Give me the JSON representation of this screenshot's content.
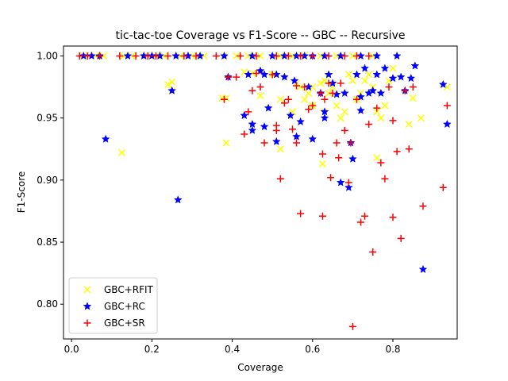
{
  "chart_data": {
    "type": "scatter",
    "title": "tic-tac-toe Coverage vs F1-Score -- GBC -- Recursive",
    "xlabel": "Coverage",
    "ylabel": "F1-Score",
    "xlim": [
      -0.02,
      0.96
    ],
    "ylim": [
      0.772,
      1.008
    ],
    "xticks": [
      0.0,
      0.2,
      0.4,
      0.6,
      0.8
    ],
    "yticks": [
      0.8,
      0.85,
      0.9,
      0.95,
      1.0
    ],
    "xtick_labels": [
      "0.0",
      "0.2",
      "0.4",
      "0.6",
      "0.8"
    ],
    "ytick_labels": [
      "0.80",
      "0.85",
      "0.90",
      "0.95",
      "1.00"
    ],
    "grid": false,
    "legend_position": "lower-left",
    "series": [
      {
        "name": "GBC+RFIT",
        "marker": "x",
        "color": "#ffff00",
        "points": [
          [
            0.03,
            1.0
          ],
          [
            0.06,
            1.0
          ],
          [
            0.08,
            1.0
          ],
          [
            0.13,
            1.0
          ],
          [
            0.15,
            1.0
          ],
          [
            0.18,
            1.0
          ],
          [
            0.21,
            1.0
          ],
          [
            0.23,
            1.0
          ],
          [
            0.27,
            1.0
          ],
          [
            0.3,
            1.0
          ],
          [
            0.33,
            1.0
          ],
          [
            0.38,
            1.0
          ],
          [
            0.41,
            1.0
          ],
          [
            0.44,
            1.0
          ],
          [
            0.47,
            1.0
          ],
          [
            0.52,
            1.0
          ],
          [
            0.55,
            1.0
          ],
          [
            0.58,
            1.0
          ],
          [
            0.62,
            1.0
          ],
          [
            0.66,
            1.0
          ],
          [
            0.7,
            1.0
          ],
          [
            0.75,
            1.0
          ],
          [
            0.125,
            0.922
          ],
          [
            0.24,
            0.977
          ],
          [
            0.25,
            0.979
          ],
          [
            0.25,
            0.972
          ],
          [
            0.375,
            0.966
          ],
          [
            0.385,
            0.966
          ],
          [
            0.385,
            0.93
          ],
          [
            0.43,
            0.987
          ],
          [
            0.45,
            0.986
          ],
          [
            0.47,
            0.968
          ],
          [
            0.5,
            0.985
          ],
          [
            0.52,
            0.965
          ],
          [
            0.52,
            0.925
          ],
          [
            0.55,
            0.955
          ],
          [
            0.56,
            0.978
          ],
          [
            0.57,
            0.975
          ],
          [
            0.58,
            0.965
          ],
          [
            0.59,
            0.97
          ],
          [
            0.6,
            0.975
          ],
          [
            0.62,
            0.978
          ],
          [
            0.63,
            0.98
          ],
          [
            0.64,
            0.97
          ],
          [
            0.65,
            0.975
          ],
          [
            0.66,
            0.96
          ],
          [
            0.67,
            0.95
          ],
          [
            0.68,
            0.955
          ],
          [
            0.69,
            0.985
          ],
          [
            0.7,
            0.98
          ],
          [
            0.71,
            0.965
          ],
          [
            0.72,
            0.97
          ],
          [
            0.73,
            0.98
          ],
          [
            0.74,
            0.985
          ],
          [
            0.75,
            0.975
          ],
          [
            0.76,
            0.955
          ],
          [
            0.76,
            0.918
          ],
          [
            0.77,
            0.95
          ],
          [
            0.78,
            0.96
          ],
          [
            0.79,
            0.98
          ],
          [
            0.8,
            0.99
          ],
          [
            0.84,
            0.945
          ],
          [
            0.85,
            0.966
          ],
          [
            0.87,
            0.95
          ],
          [
            0.935,
            0.975
          ],
          [
            0.625,
            0.913
          ],
          [
            0.6,
            0.96
          ],
          [
            0.63,
            0.955
          ]
        ]
      },
      {
        "name": "GBC+RC",
        "marker": "*",
        "color": "#0000ff",
        "points": [
          [
            0.03,
            1.0
          ],
          [
            0.05,
            1.0
          ],
          [
            0.07,
            1.0
          ],
          [
            0.14,
            1.0
          ],
          [
            0.18,
            1.0
          ],
          [
            0.2,
            1.0
          ],
          [
            0.22,
            1.0
          ],
          [
            0.26,
            1.0
          ],
          [
            0.29,
            1.0
          ],
          [
            0.32,
            1.0
          ],
          [
            0.38,
            1.0
          ],
          [
            0.45,
            1.0
          ],
          [
            0.5,
            1.0
          ],
          [
            0.53,
            1.0
          ],
          [
            0.56,
            1.0
          ],
          [
            0.58,
            1.0
          ],
          [
            0.6,
            1.0
          ],
          [
            0.63,
            1.0
          ],
          [
            0.67,
            1.0
          ],
          [
            0.72,
            1.0
          ],
          [
            0.76,
            1.0
          ],
          [
            0.085,
            0.933
          ],
          [
            0.25,
            0.972
          ],
          [
            0.265,
            0.884
          ],
          [
            0.39,
            0.983
          ],
          [
            0.43,
            0.952
          ],
          [
            0.44,
            0.985
          ],
          [
            0.45,
            0.945
          ],
          [
            0.45,
            0.94
          ],
          [
            0.47,
            0.988
          ],
          [
            0.48,
            0.985
          ],
          [
            0.48,
            0.943
          ],
          [
            0.49,
            0.958
          ],
          [
            0.51,
            0.985
          ],
          [
            0.51,
            0.931
          ],
          [
            0.53,
            0.983
          ],
          [
            0.545,
            0.952
          ],
          [
            0.555,
            0.98
          ],
          [
            0.56,
            0.935
          ],
          [
            0.57,
            0.947
          ],
          [
            0.59,
            0.975
          ],
          [
            0.6,
            0.933
          ],
          [
            0.62,
            0.97
          ],
          [
            0.63,
            0.95
          ],
          [
            0.63,
            0.955
          ],
          [
            0.64,
            0.985
          ],
          [
            0.65,
            0.978
          ],
          [
            0.66,
            0.969
          ],
          [
            0.67,
            0.898
          ],
          [
            0.68,
            0.97
          ],
          [
            0.69,
            0.894
          ],
          [
            0.695,
            0.93
          ],
          [
            0.7,
            0.917
          ],
          [
            0.71,
            0.985
          ],
          [
            0.72,
            0.967
          ],
          [
            0.72,
            0.956
          ],
          [
            0.73,
            0.99
          ],
          [
            0.74,
            0.97
          ],
          [
            0.75,
            0.972
          ],
          [
            0.76,
            0.985
          ],
          [
            0.77,
            0.97
          ],
          [
            0.78,
            0.99
          ],
          [
            0.8,
            0.982
          ],
          [
            0.81,
            1.0
          ],
          [
            0.82,
            0.983
          ],
          [
            0.83,
            0.972
          ],
          [
            0.845,
            0.982
          ],
          [
            0.855,
            0.992
          ],
          [
            0.875,
            0.828
          ],
          [
            0.925,
            0.977
          ],
          [
            0.935,
            0.945
          ]
        ]
      },
      {
        "name": "GBC+SR",
        "marker": "+",
        "color": "#ff0000",
        "points": [
          [
            0.02,
            1.0
          ],
          [
            0.04,
            1.0
          ],
          [
            0.07,
            1.0
          ],
          [
            0.12,
            1.0
          ],
          [
            0.16,
            1.0
          ],
          [
            0.19,
            1.0
          ],
          [
            0.21,
            1.0
          ],
          [
            0.24,
            1.0
          ],
          [
            0.28,
            1.0
          ],
          [
            0.31,
            1.0
          ],
          [
            0.36,
            1.0
          ],
          [
            0.42,
            1.0
          ],
          [
            0.46,
            1.0
          ],
          [
            0.51,
            1.0
          ],
          [
            0.54,
            1.0
          ],
          [
            0.57,
            1.0
          ],
          [
            0.6,
            1.0
          ],
          [
            0.64,
            1.0
          ],
          [
            0.68,
            1.0
          ],
          [
            0.71,
            1.0
          ],
          [
            0.74,
            1.0
          ],
          [
            0.38,
            0.965
          ],
          [
            0.39,
            0.983
          ],
          [
            0.41,
            0.983
          ],
          [
            0.43,
            0.937
          ],
          [
            0.44,
            0.955
          ],
          [
            0.45,
            0.972
          ],
          [
            0.46,
            0.986
          ],
          [
            0.47,
            0.975
          ],
          [
            0.48,
            0.93
          ],
          [
            0.5,
            0.985
          ],
          [
            0.51,
            0.944
          ],
          [
            0.51,
            0.94
          ],
          [
            0.52,
            0.901
          ],
          [
            0.53,
            0.962
          ],
          [
            0.54,
            0.965
          ],
          [
            0.55,
            0.941
          ],
          [
            0.56,
            0.976
          ],
          [
            0.56,
            0.93
          ],
          [
            0.57,
            0.873
          ],
          [
            0.58,
            0.975
          ],
          [
            0.59,
            0.957
          ],
          [
            0.6,
            0.96
          ],
          [
            0.62,
            0.97
          ],
          [
            0.625,
            0.921
          ],
          [
            0.625,
            0.871
          ],
          [
            0.63,
            0.965
          ],
          [
            0.64,
            0.978
          ],
          [
            0.645,
            0.902
          ],
          [
            0.65,
            0.97
          ],
          [
            0.66,
            0.93
          ],
          [
            0.665,
            0.918
          ],
          [
            0.67,
            0.978
          ],
          [
            0.68,
            0.94
          ],
          [
            0.69,
            0.898
          ],
          [
            0.695,
            0.93
          ],
          [
            0.7,
            0.782
          ],
          [
            0.71,
            0.965
          ],
          [
            0.72,
            0.866
          ],
          [
            0.73,
            0.871
          ],
          [
            0.74,
            0.945
          ],
          [
            0.75,
            0.842
          ],
          [
            0.76,
            0.958
          ],
          [
            0.77,
            0.914
          ],
          [
            0.78,
            0.901
          ],
          [
            0.79,
            0.975
          ],
          [
            0.8,
            0.948
          ],
          [
            0.8,
            0.87
          ],
          [
            0.81,
            0.923
          ],
          [
            0.82,
            0.853
          ],
          [
            0.83,
            0.972
          ],
          [
            0.84,
            0.925
          ],
          [
            0.85,
            0.975
          ],
          [
            0.875,
            0.879
          ],
          [
            0.925,
            0.894
          ],
          [
            0.935,
            0.96
          ]
        ]
      }
    ]
  }
}
